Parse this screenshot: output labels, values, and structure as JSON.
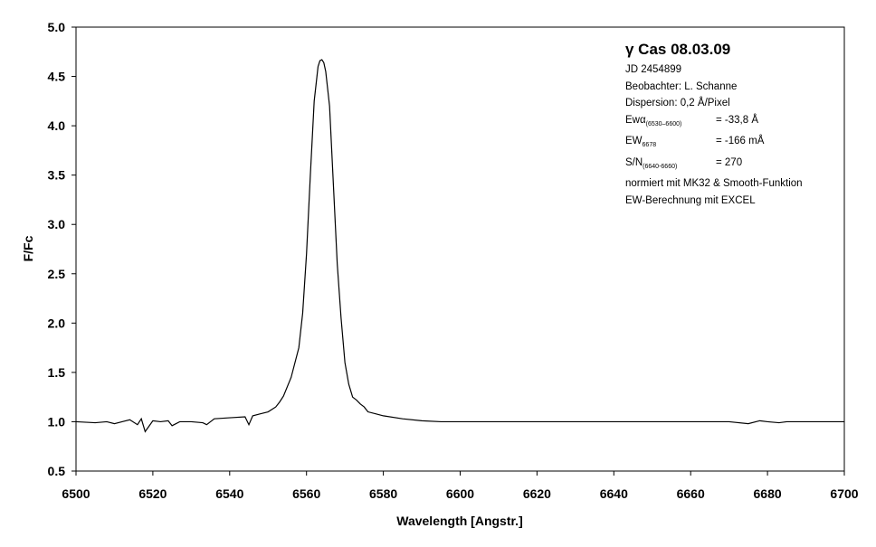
{
  "chart_data": {
    "type": "line",
    "xlabel": "Wavelength [Angstr.]",
    "ylabel": "F/Fc",
    "xlim": [
      6500,
      6700
    ],
    "ylim": [
      0.5,
      5.0
    ],
    "xticks": [
      "6500",
      "6520",
      "6540",
      "6560",
      "6580",
      "6600",
      "6620",
      "6640",
      "6660",
      "6680",
      "6700"
    ],
    "yticks": [
      "0.5",
      "1.0",
      "1.5",
      "2.0",
      "2.5",
      "3.0",
      "3.5",
      "4.0",
      "4.5",
      "5.0"
    ],
    "grid": false,
    "legend": "none",
    "line_color": "#000000",
    "series": [
      {
        "x": [
          6500,
          6505,
          6508,
          6510,
          6512,
          6514,
          6516,
          6517,
          6518,
          6520,
          6522,
          6524,
          6525,
          6527,
          6530,
          6533,
          6534,
          6536,
          6540,
          6544,
          6545,
          6546,
          6548,
          6550,
          6552,
          6553,
          6554,
          6556,
          6558,
          6559,
          6560,
          6561,
          6562,
          6563,
          6563.5,
          6564,
          6564.5,
          6565,
          6566,
          6567,
          6568,
          6569,
          6570,
          6571,
          6572,
          6573,
          6574,
          6575,
          6576,
          6578,
          6580,
          6585,
          6590,
          6595,
          6600,
          6610,
          6620,
          6630,
          6640,
          6650,
          6660,
          6670,
          6675,
          6678,
          6680,
          6683,
          6685,
          6690,
          6700
        ],
        "y": [
          1.0,
          0.99,
          1.0,
          0.98,
          1.0,
          1.02,
          0.97,
          1.03,
          0.9,
          1.01,
          1.0,
          1.01,
          0.96,
          1.0,
          1.0,
          0.99,
          0.97,
          1.03,
          1.04,
          1.05,
          0.97,
          1.06,
          1.08,
          1.1,
          1.15,
          1.2,
          1.26,
          1.45,
          1.75,
          2.1,
          2.7,
          3.5,
          4.25,
          4.6,
          4.66,
          4.67,
          4.64,
          4.55,
          4.2,
          3.4,
          2.6,
          2.05,
          1.6,
          1.38,
          1.25,
          1.22,
          1.18,
          1.15,
          1.1,
          1.08,
          1.06,
          1.03,
          1.01,
          1.0,
          1.0,
          1.0,
          1.0,
          1.0,
          1.0,
          1.0,
          1.0,
          1.0,
          0.98,
          1.01,
          1.0,
          0.99,
          1.0,
          1.0,
          1.0
        ]
      }
    ]
  },
  "annotation": {
    "title": "γ Cas 08.03.09",
    "jd": "JD 2454899",
    "observer": "Beobachter: L. Schanne",
    "dispersion": "Dispersion: 0,2 Å/Pixel",
    "ew1_label": "Ewα",
    "ew1_sub": "(6530–6600)",
    "ew1_value": "= -33,8 Å",
    "ew2_label": "EW",
    "ew2_sub": "6678",
    "ew2_value": "= -166 mÅ",
    "sn_label": "S/N",
    "sn_sub": "(6640-6660)",
    "sn_value": "= 270",
    "note1": "normiert mit MK32 & Smooth-Funktion",
    "note2": "EW-Berechnung mit EXCEL"
  }
}
